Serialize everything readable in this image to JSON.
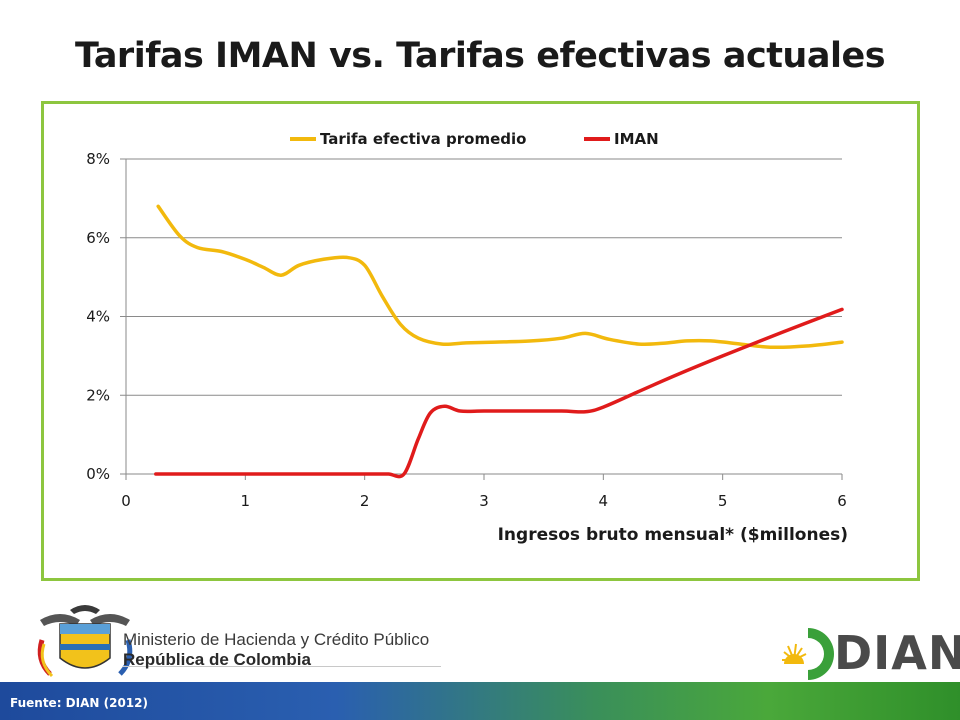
{
  "slide": {
    "title": "Tarifas IMAN vs. Tarifas efectivas actuales",
    "source": "Fuente: DIAN (2012)"
  },
  "footer": {
    "ministerio_line1": "Ministerio de Hacienda y Crédito Público",
    "ministerio_line2": "República de Colombia",
    "dian_logo_text": "DIAN"
  },
  "colors": {
    "frame_border": "#8dc63f",
    "series_efectiva": "#f2b90d",
    "series_iman": "#e01b1b",
    "gridline": "#8a8a8a"
  },
  "chart_data": {
    "type": "line",
    "title": "",
    "xlabel": "Ingresos bruto mensual* ($millones)",
    "ylabel": "",
    "xlim": [
      0,
      6
    ],
    "ylim": [
      0,
      8
    ],
    "xticks": [
      0,
      1,
      2,
      3,
      4,
      5,
      6
    ],
    "xtick_labels": [
      "0",
      "1",
      "2",
      "3",
      "4",
      "5",
      "6"
    ],
    "yticks": [
      0,
      2,
      4,
      6,
      8
    ],
    "ytick_labels": [
      "0%",
      "2%",
      "4%",
      "6%",
      "8%"
    ],
    "grid": "horizontal",
    "legend_position": "top",
    "series": [
      {
        "name": "Tarifa efectiva promedio",
        "color": "#f2b90d",
        "points": [
          [
            0.27,
            6.8
          ],
          [
            0.45,
            6.05
          ],
          [
            0.6,
            5.75
          ],
          [
            0.8,
            5.65
          ],
          [
            1.0,
            5.45
          ],
          [
            1.15,
            5.25
          ],
          [
            1.3,
            5.05
          ],
          [
            1.45,
            5.3
          ],
          [
            1.65,
            5.45
          ],
          [
            1.85,
            5.5
          ],
          [
            2.0,
            5.3
          ],
          [
            2.15,
            4.5
          ],
          [
            2.3,
            3.8
          ],
          [
            2.45,
            3.45
          ],
          [
            2.65,
            3.3
          ],
          [
            2.85,
            3.33
          ],
          [
            3.1,
            3.35
          ],
          [
            3.4,
            3.38
          ],
          [
            3.65,
            3.45
          ],
          [
            3.85,
            3.57
          ],
          [
            4.05,
            3.42
          ],
          [
            4.3,
            3.3
          ],
          [
            4.5,
            3.32
          ],
          [
            4.7,
            3.38
          ],
          [
            4.9,
            3.38
          ],
          [
            5.15,
            3.3
          ],
          [
            5.4,
            3.22
          ],
          [
            5.7,
            3.25
          ],
          [
            6.0,
            3.35
          ]
        ]
      },
      {
        "name": "IMAN",
        "color": "#e01b1b",
        "points": [
          [
            0.25,
            0.0
          ],
          [
            1.5,
            0.0
          ],
          [
            2.05,
            0.0
          ],
          [
            2.2,
            0.0
          ],
          [
            2.33,
            0.0
          ],
          [
            2.45,
            0.9
          ],
          [
            2.55,
            1.55
          ],
          [
            2.67,
            1.72
          ],
          [
            2.8,
            1.6
          ],
          [
            3.0,
            1.6
          ],
          [
            3.3,
            1.6
          ],
          [
            3.65,
            1.6
          ],
          [
            3.85,
            1.58
          ],
          [
            4.0,
            1.7
          ],
          [
            4.3,
            2.1
          ],
          [
            4.6,
            2.5
          ],
          [
            5.0,
            3.0
          ],
          [
            5.5,
            3.6
          ],
          [
            6.0,
            4.18
          ]
        ]
      }
    ]
  }
}
